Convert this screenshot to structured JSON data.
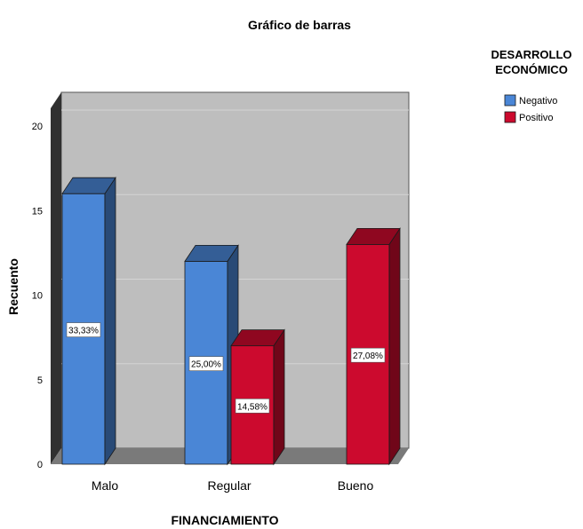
{
  "chart_data": {
    "type": "bar",
    "title": "Gráfico de barras",
    "xlabel": "FINANCIAMIENTO",
    "ylabel": "Recuento",
    "categories": [
      "Malo",
      "Regular",
      "Bueno"
    ],
    "ylim": [
      0,
      20
    ],
    "yticks": [
      "0",
      "5",
      "10",
      "15",
      "20"
    ],
    "grid": true,
    "legend": {
      "title_lines": [
        "DESARROLLO",
        "ECONÓMICO"
      ],
      "placement": "top-right"
    },
    "series": [
      {
        "name": "Negativo",
        "color": "#4A86D6",
        "values": [
          16,
          12,
          null
        ],
        "labels": [
          "33,33%",
          "25,00%",
          ""
        ]
      },
      {
        "name": "Positivo",
        "color": "#CC0A2E",
        "values": [
          null,
          7,
          13
        ],
        "labels": [
          "",
          "14,58%",
          "27,08%"
        ]
      }
    ],
    "colors": {
      "plot_bg": "#BEBEBE",
      "gridline": "#D4D4D4",
      "floor": "#7A7A7A",
      "wall_side": "#303030"
    }
  }
}
